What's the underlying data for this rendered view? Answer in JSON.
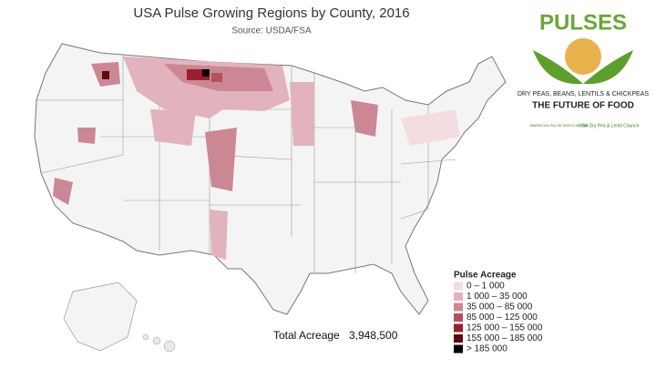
{
  "header": {
    "title": "USA Pulse Growing Regions by County, 2016",
    "source": "Source: USDA/FSA"
  },
  "logo": {
    "brand": "PULSES",
    "tagline": "DRY PEAS, BEANS, LENTILS & CHICKPEAS",
    "slogan": "THE FUTURE OF FOOD",
    "partner_1": "AMERICAN PULSE ASSOCIATION",
    "partner_2": "USA Dry Pea & Lentil Council"
  },
  "legend": {
    "title": "Pulse Acreage",
    "items": [
      {
        "label": "0 – 1 000",
        "color": "#f3dde1"
      },
      {
        "label": "1 000 – 35 000",
        "color": "#e2b3bc"
      },
      {
        "label": "35 000 – 85 000",
        "color": "#cc8795"
      },
      {
        "label": "85 000 – 125 000",
        "color": "#b5505f"
      },
      {
        "label": "125 000 – 155 000",
        "color": "#982030"
      },
      {
        "label": "155 000 – 185 000",
        "color": "#5a0b12"
      },
      {
        "label": "> 185 000",
        "color": "#000000"
      }
    ]
  },
  "total": {
    "label": "Total Acreage",
    "value": "3,948,500"
  }
}
